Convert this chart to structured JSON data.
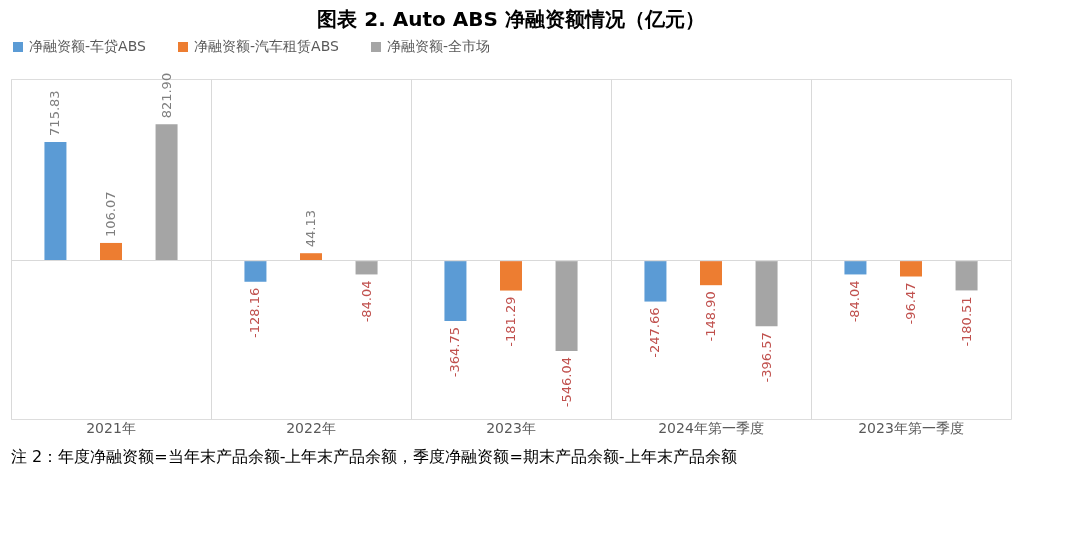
{
  "chart_data": {
    "type": "bar",
    "title": "图表 2.   Auto ABS 净融资额情况（亿元）",
    "categories": [
      "2021年",
      "2022年",
      "2023年",
      "2024年第一季度",
      "2023年第一季度"
    ],
    "series": [
      {
        "name": "净融资额-车贷ABS",
        "color": "#5b9bd5",
        "values": [
          715.83,
          -128.16,
          -364.75,
          -247.66,
          -84.04
        ],
        "value_labels": [
          "715.83",
          "-128.16",
          "-364.75",
          "-247.66",
          "-84.04"
        ]
      },
      {
        "name": "净融资额-汽车租赁ABS",
        "color": "#ed7d31",
        "values": [
          106.07,
          44.13,
          -181.29,
          -148.9,
          -96.47
        ],
        "value_labels": [
          "106.07",
          "44.13",
          "-181.29",
          "-148.90",
          "-96.47"
        ]
      },
      {
        "name": "净融资额-全市场",
        "color": "#a5a5a5",
        "values": [
          821.9,
          -84.04,
          -546.04,
          -396.57,
          -180.51
        ],
        "value_labels": [
          "821.90",
          "-84.04",
          "-546.04",
          "-396.57",
          "-180.51"
        ]
      }
    ],
    "legend": "top",
    "grid": "x",
    "annotations": [
      "注 2：年度净融资额=当年末产品余额-上年末产品余额，季度净融资额=期末产品余额-上年末产品余额"
    ]
  }
}
